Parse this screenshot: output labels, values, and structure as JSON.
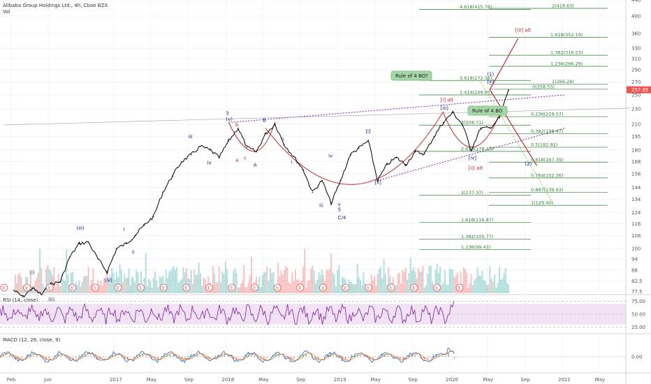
{
  "header": {
    "title": "Alibaba Group Holdings Ltd., 4h, Cboe BZX",
    "volume_label": "Vol"
  },
  "colors": {
    "up": "#26a69a",
    "down": "#ef5350",
    "price_line": "#000000",
    "rsi": "#7b1fa2",
    "rsi_band": "#e1bee7",
    "macd": "#1565c0",
    "signal": "#ef6c00",
    "fib": "#2e7d32",
    "wave_blue": "#1a237e",
    "wave_red": "#c62828",
    "channel": "#7b1fa2"
  },
  "chart_data": {
    "type": "line",
    "title": "Alibaba Group Holdings Ltd., 4h, Cboe BZX",
    "y_scale": "log",
    "ylim": [
      76,
      440
    ],
    "price_ticks": [
      440,
      400,
      360,
      330,
      310,
      290,
      270,
      250,
      230,
      210,
      195,
      180,
      168,
      156,
      144,
      134,
      124,
      116,
      108,
      100,
      94,
      88,
      82.5,
      77.5
    ],
    "last_price": "257.65",
    "x_ticks": [
      "Feb",
      "Jun",
      "2017",
      "May",
      "Sep",
      "2018",
      "May",
      "Sep",
      "2019",
      "May",
      "Sep",
      "2020",
      "May",
      "Sep",
      "2021",
      "May"
    ],
    "price_path": [
      {
        "d": "2016-02",
        "v": 78
      },
      {
        "d": "2016-03",
        "v": 75
      },
      {
        "d": "2016-04",
        "v": 79
      },
      {
        "d": "2016-05",
        "v": 76
      },
      {
        "d": "2016-06",
        "v": 81
      },
      {
        "d": "2016-07",
        "v": 82
      },
      {
        "d": "2016-08",
        "v": 95
      },
      {
        "d": "2016-09",
        "v": 103
      },
      {
        "d": "2016-10",
        "v": 104
      },
      {
        "d": "2016-11",
        "v": 94
      },
      {
        "d": "2016-12",
        "v": 87
      },
      {
        "d": "2017-01",
        "v": 100
      },
      {
        "d": "2017-02",
        "v": 103
      },
      {
        "d": "2017-03",
        "v": 108
      },
      {
        "d": "2017-04",
        "v": 115
      },
      {
        "d": "2017-05",
        "v": 121
      },
      {
        "d": "2017-06",
        "v": 140
      },
      {
        "d": "2017-07",
        "v": 154
      },
      {
        "d": "2017-08",
        "v": 168
      },
      {
        "d": "2017-09",
        "v": 175
      },
      {
        "d": "2017-10",
        "v": 184
      },
      {
        "d": "2017-11",
        "v": 180
      },
      {
        "d": "2017-12",
        "v": 172
      },
      {
        "d": "2018-01",
        "v": 190
      },
      {
        "d": "2018-02",
        "v": 205
      },
      {
        "d": "2018-03",
        "v": 183
      },
      {
        "d": "2018-04",
        "v": 178
      },
      {
        "d": "2018-05",
        "v": 198
      },
      {
        "d": "2018-06",
        "v": 210
      },
      {
        "d": "2018-07",
        "v": 186
      },
      {
        "d": "2018-08",
        "v": 173
      },
      {
        "d": "2018-09",
        "v": 160
      },
      {
        "d": "2018-10",
        "v": 140
      },
      {
        "d": "2018-11",
        "v": 150
      },
      {
        "d": "2018-12",
        "v": 131
      },
      {
        "d": "2019-01",
        "v": 150
      },
      {
        "d": "2019-02",
        "v": 175
      },
      {
        "d": "2019-03",
        "v": 182
      },
      {
        "d": "2019-04",
        "v": 190
      },
      {
        "d": "2019-05",
        "v": 150
      },
      {
        "d": "2019-06",
        "v": 165
      },
      {
        "d": "2019-07",
        "v": 172
      },
      {
        "d": "2019-08",
        "v": 165
      },
      {
        "d": "2019-09",
        "v": 178
      },
      {
        "d": "2019-10",
        "v": 176
      },
      {
        "d": "2019-11",
        "v": 195
      },
      {
        "d": "2019-12",
        "v": 212
      },
      {
        "d": "2020-01",
        "v": 225
      },
      {
        "d": "2020-02",
        "v": 210
      },
      {
        "d": "2020-03",
        "v": 180
      },
      {
        "d": "2020-04",
        "v": 205
      },
      {
        "d": "2020-05",
        "v": 205
      },
      {
        "d": "2020-06",
        "v": 218
      },
      {
        "d": "2020-07",
        "v": 257.65
      }
    ],
    "fib_levels": [
      {
        "label": "4.618(415.78)",
        "value": 415.78
      },
      {
        "label": "2(418.63)",
        "value": 418.63
      },
      {
        "label": "1.618(352.19)",
        "value": 352.19
      },
      {
        "label": "1.382(316.53)",
        "value": 316.53
      },
      {
        "label": "1.236(296.29)",
        "value": 296.29
      },
      {
        "label": "3.618(272.36)",
        "value": 272.36
      },
      {
        "label": "1(266.29)",
        "value": 266.29
      },
      {
        "label": "0(258.53)",
        "value": 258.53
      },
      {
        "label": "1.414(249.85)",
        "value": 249.85
      },
      {
        "label": "0.236(219.57)",
        "value": 219.57
      },
      {
        "label": "3(208.71)",
        "value": 208.71
      },
      {
        "label": "0.382(198.47)",
        "value": 198.47
      },
      {
        "label": "0.5(182.91)",
        "value": 182.91
      },
      {
        "label": "2.618(178.43)",
        "value": 178.43
      },
      {
        "label": "0.618(167.39)",
        "value": 167.39
      },
      {
        "label": "0.764(152.36)",
        "value": 152.36
      },
      {
        "label": "0.887(139.93)",
        "value": 139.93
      },
      {
        "label": "2(137.37)",
        "value": 137.37
      },
      {
        "label": "1(129.40)",
        "value": 129.4
      },
      {
        "label": "1.618(116.87)",
        "value": 116.87
      },
      {
        "label": "1.382(105.77)",
        "value": 105.77
      },
      {
        "label": "1.236(99.43)",
        "value": 99.43
      }
    ],
    "wave_labels": [
      {
        "text": "(i)",
        "d": "2016-04",
        "v": 86,
        "color": "blue"
      },
      {
        "text": "(ii)",
        "d": "2016-06",
        "v": 73,
        "color": "blue"
      },
      {
        "text": "(iii)",
        "d": "2016-09",
        "v": 112,
        "color": "blue"
      },
      {
        "text": "(iv)",
        "d": "2016-12",
        "v": 82,
        "color": "blue"
      },
      {
        "text": "i",
        "d": "2017-02",
        "v": 111,
        "color": "blue"
      },
      {
        "text": "ii",
        "d": "2017-03",
        "v": 97,
        "color": "blue"
      },
      {
        "text": "iii",
        "d": "2017-09",
        "v": 193,
        "color": "blue"
      },
      {
        "text": "iv",
        "d": "2017-11",
        "v": 165,
        "color": "blue"
      },
      {
        "text": "3",
        "d": "2018-01",
        "v": 222,
        "color": "blue"
      },
      {
        "text": "(v)",
        "d": "2018-01",
        "v": 214,
        "color": "blue"
      },
      {
        "text": "b",
        "d": "2018-02",
        "v": 207,
        "color": "red"
      },
      {
        "text": "a",
        "d": "2018-02",
        "v": 168,
        "color": "red"
      },
      {
        "text": "c",
        "d": "2018-03",
        "v": 170,
        "color": "red"
      },
      {
        "text": "B",
        "d": "2018-05",
        "v": 213,
        "color": "blue"
      },
      {
        "text": "A",
        "d": "2018-04",
        "v": 163,
        "color": "blue"
      },
      {
        "text": "ii",
        "d": "2018-07",
        "v": 190,
        "color": "blue"
      },
      {
        "text": "i",
        "d": "2018-08",
        "v": 166,
        "color": "blue"
      },
      {
        "text": "iii",
        "d": "2018-11",
        "v": 128,
        "color": "blue"
      },
      {
        "text": "iv",
        "d": "2018-12",
        "v": 172,
        "color": "blue"
      },
      {
        "text": "v",
        "d": "2019-01",
        "v": 129,
        "color": "blue"
      },
      {
        "text": "5",
        "d": "2019-01",
        "v": 125,
        "color": "blue"
      },
      {
        "text": "C/4",
        "d": "2019-01",
        "v": 119,
        "color": "blue"
      },
      {
        "text": "[i]",
        "d": "2019-04",
        "v": 199,
        "color": "blue"
      },
      {
        "text": "[ii]",
        "d": "2019-05",
        "v": 147,
        "color": "blue"
      },
      {
        "text": "[i] alt",
        "d": "2019-12",
        "v": 240,
        "color": "red"
      },
      {
        "text": "[iii]",
        "d": "2019-12",
        "v": 229,
        "color": "blue"
      },
      {
        "text": "[iv]",
        "d": "2020-03",
        "v": 170,
        "color": "blue"
      },
      {
        "text": "[ii] alt",
        "d": "2020-03",
        "v": 160,
        "color": "red"
      },
      {
        "text": "(1)",
        "d": "2020-05",
        "v": 280,
        "color": "blue"
      },
      {
        "text": "[v]",
        "d": "2020-05",
        "v": 268,
        "color": "blue"
      },
      {
        "text": "[iii] alt",
        "d": "2020-08",
        "v": 364,
        "color": "red"
      },
      {
        "text": "(2)",
        "d": "2020-09",
        "v": 164,
        "color": "blue"
      }
    ],
    "callouts": [
      "Rule of 4 BO?",
      "Rule of 4 BO"
    ],
    "earnings_markers": [
      "E",
      "E",
      "E",
      "E",
      "E",
      "E",
      "E",
      "E",
      "E",
      "E",
      "E",
      "E",
      "E",
      "E",
      "E",
      "E",
      "E",
      "E",
      "E",
      "E",
      "E"
    ],
    "rsi": {
      "label": "RSI (14, close)",
      "ticks": [
        "75.00",
        "50.00",
        "25.00"
      ],
      "ylim": [
        15,
        85
      ],
      "bands": [
        70,
        30
      ],
      "last": 75
    },
    "macd": {
      "label": "MACD (12, 26, close, 9)",
      "ticks": [
        "0.00"
      ]
    }
  }
}
